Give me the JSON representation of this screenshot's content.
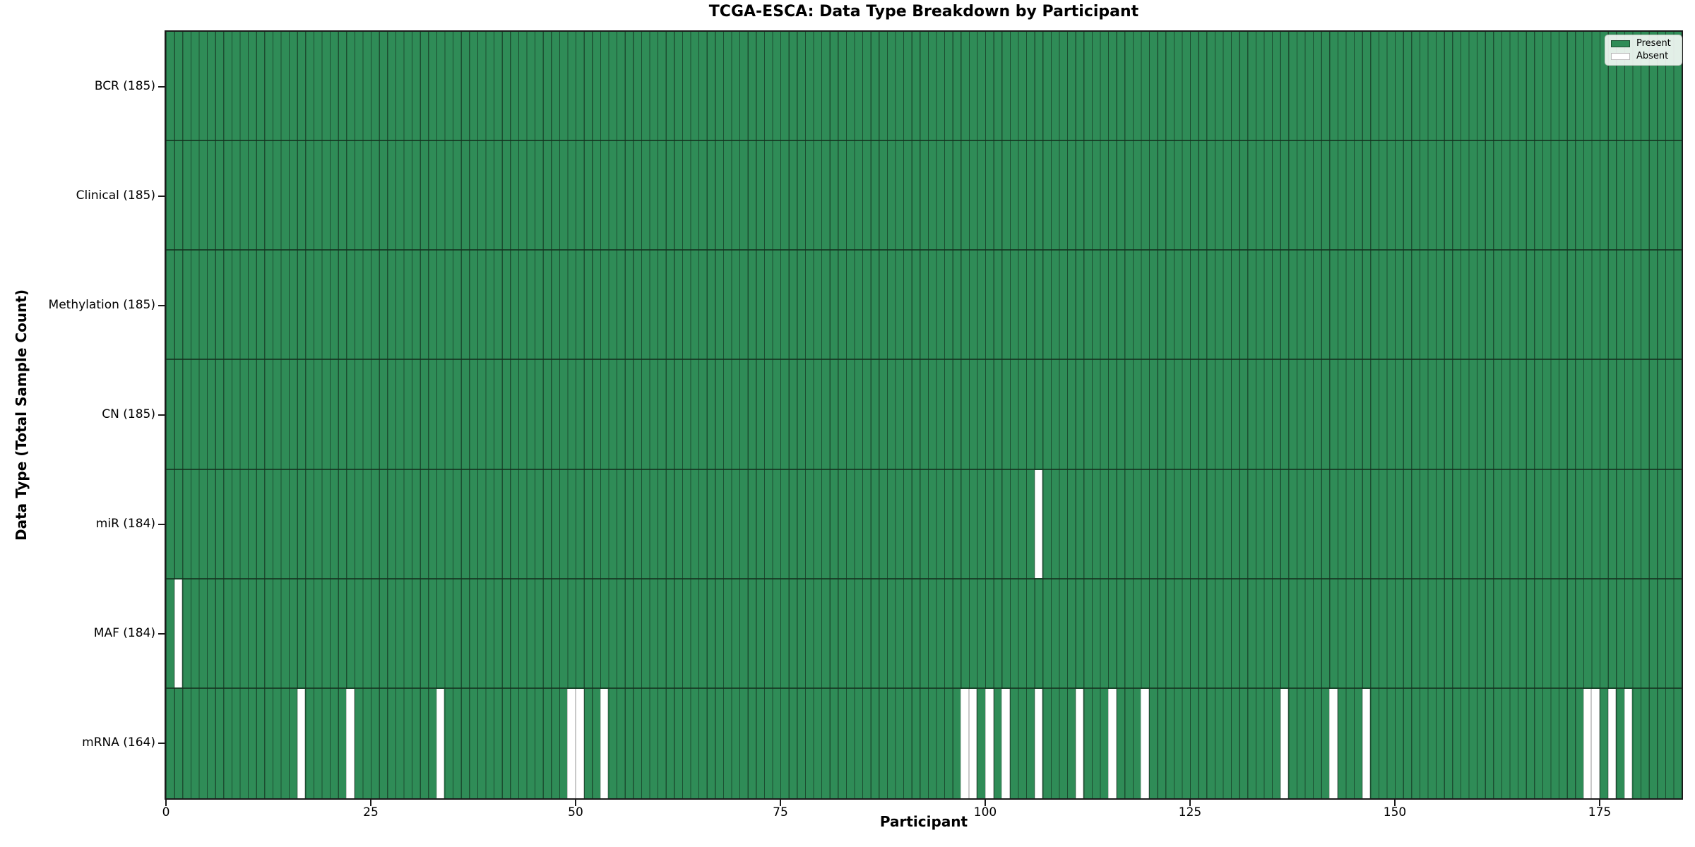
{
  "chart_data": {
    "type": "heatmap",
    "title": "TCGA-ESCA: Data Type Breakdown by Participant",
    "xlabel": "Participant",
    "ylabel": "Data Type (Total Sample Count)",
    "n_participants": 185,
    "x_ticks": [
      0,
      25,
      50,
      75,
      100,
      125,
      150,
      175
    ],
    "grid": "bar-edge pinstripes, no gridlines",
    "legend_position": "upper right",
    "legend": {
      "items": [
        {
          "label": "Present",
          "color": "#2f8c57"
        },
        {
          "label": "Absent",
          "color": "#ffffff"
        }
      ]
    },
    "colors": {
      "present": "#2f8c57",
      "absent": "#ffffff",
      "bar_edge": "#1c4e31",
      "band_separator": "#14321f",
      "axis": "#1a1a1a"
    },
    "rows": [
      {
        "label": "BCR",
        "total": 185,
        "absent": []
      },
      {
        "label": "Clinical",
        "total": 185,
        "absent": []
      },
      {
        "label": "Methylation",
        "total": 185,
        "absent": []
      },
      {
        "label": "CN",
        "total": 185,
        "absent": []
      },
      {
        "label": "miR",
        "total": 184,
        "absent": [
          106
        ]
      },
      {
        "label": "MAF",
        "total": 184,
        "absent": [
          1
        ]
      },
      {
        "label": "mRNA",
        "total": 164,
        "absent": [
          16,
          22,
          33,
          49,
          50,
          53,
          97,
          98,
          100,
          102,
          106,
          111,
          115,
          119,
          136,
          142,
          146,
          173,
          174,
          176,
          178
        ]
      }
    ]
  }
}
